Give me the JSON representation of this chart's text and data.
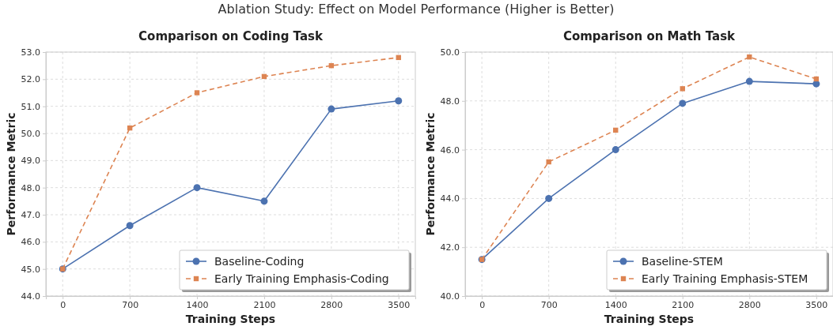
{
  "chart_data": [
    {
      "type": "line",
      "title": "Comparison on Coding Task",
      "annotations": [
        "Ablation Study: Effect on Model Performance (Higher is Better)"
      ],
      "xlabel": "Training Steps",
      "ylabel": "Performance Metric",
      "x": [
        0,
        700,
        1400,
        2100,
        2800,
        3500
      ],
      "xlim": [
        -175,
        3675
      ],
      "xticks": [
        0,
        700,
        1400,
        2100,
        2800,
        3500
      ],
      "ylim": [
        44,
        53
      ],
      "yticks": [
        {
          "value": 44,
          "label": "44.0"
        },
        {
          "value": 45,
          "label": "45.0"
        },
        {
          "value": 46,
          "label": "46.0"
        },
        {
          "value": 47,
          "label": "47.0"
        },
        {
          "value": 48,
          "label": "48.0"
        },
        {
          "value": 49,
          "label": "49.0"
        },
        {
          "value": 50,
          "label": "50.0"
        },
        {
          "value": 51,
          "label": "51.0"
        },
        {
          "value": 52,
          "label": "52.0"
        },
        {
          "value": 53,
          "label": "53.0"
        }
      ],
      "grid": true,
      "legend": "bottom right",
      "series": [
        {
          "name": "Baseline-Coding",
          "color": "#4c72b0",
          "marker": "circle",
          "line_style": "solid",
          "values": [
            45.0,
            46.6,
            48.0,
            47.5,
            50.9,
            51.2
          ]
        },
        {
          "name": "Early Training Emphasis-Coding",
          "color": "#dd8452",
          "marker": "square",
          "line_style": "dashed",
          "values": [
            45.0,
            50.2,
            51.5,
            52.1,
            52.5,
            52.8
          ]
        }
      ]
    },
    {
      "type": "line",
      "title": "Comparison on Math Task",
      "xlabel": "Training Steps",
      "ylabel": "Performance Metric",
      "x": [
        0,
        700,
        1400,
        2100,
        2800,
        3500
      ],
      "xlim": [
        -175,
        3675
      ],
      "xticks": [
        0,
        700,
        1400,
        2100,
        2800,
        3500
      ],
      "ylim": [
        40,
        50
      ],
      "yticks": [
        {
          "value": 40,
          "label": "40.0"
        },
        {
          "value": 42,
          "label": "42.0"
        },
        {
          "value": 44,
          "label": "44.0"
        },
        {
          "value": 46,
          "label": "46.0"
        },
        {
          "value": 48,
          "label": "48.0"
        },
        {
          "value": 50,
          "label": "50.0"
        }
      ],
      "grid": true,
      "legend": "bottom right",
      "series": [
        {
          "name": "Baseline-STEM",
          "color": "#4c72b0",
          "marker": "circle",
          "line_style": "solid",
          "values": [
            41.5,
            44.0,
            46.0,
            47.9,
            48.8,
            48.7
          ]
        },
        {
          "name": "Early Training Emphasis-STEM",
          "color": "#dd8452",
          "marker": "square",
          "line_style": "dashed",
          "values": [
            41.5,
            45.5,
            46.8,
            48.5,
            49.8,
            48.9
          ]
        }
      ]
    }
  ]
}
